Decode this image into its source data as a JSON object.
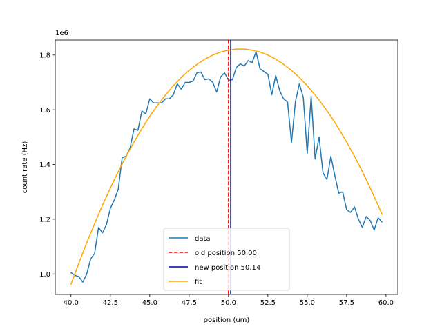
{
  "chart_data": {
    "type": "line",
    "xlabel": "position (um)",
    "ylabel": "count rate (Hz)",
    "y_offset_text": "1e6",
    "xlim": [
      39.0,
      60.75
    ],
    "ylim": [
      0.925,
      1.855
    ],
    "x_ticks": [
      40.0,
      42.5,
      45.0,
      47.5,
      50.0,
      52.5,
      55.0,
      57.5,
      60.0
    ],
    "x_tick_labels": [
      "40.0",
      "42.5",
      "45.0",
      "47.5",
      "50.0",
      "52.5",
      "55.0",
      "57.5",
      "60.0"
    ],
    "y_ticks": [
      1.0,
      1.2,
      1.4,
      1.6,
      1.8
    ],
    "y_tick_labels": [
      "1.0",
      "1.2",
      "1.4",
      "1.6",
      "1.8"
    ],
    "grid": false,
    "legend_position": "lower-center",
    "series": [
      {
        "name": "data",
        "color": "#1f77b4",
        "style": "solid",
        "x": [
          40.0,
          40.25,
          40.5,
          40.75,
          41.0,
          41.25,
          41.5,
          41.75,
          42.0,
          42.25,
          42.5,
          42.75,
          43.0,
          43.25,
          43.5,
          43.75,
          44.0,
          44.25,
          44.5,
          44.75,
          45.0,
          45.25,
          45.5,
          45.75,
          46.0,
          46.25,
          46.5,
          46.75,
          47.0,
          47.25,
          47.5,
          47.75,
          48.0,
          48.25,
          48.5,
          48.75,
          49.0,
          49.25,
          49.5,
          49.75,
          50.0,
          50.25,
          50.5,
          50.75,
          51.0,
          51.25,
          51.5,
          51.75,
          52.0,
          52.25,
          52.5,
          52.75,
          53.0,
          53.25,
          53.5,
          53.75,
          54.0,
          54.25,
          54.5,
          54.75,
          55.0,
          55.25,
          55.5,
          55.75,
          56.0,
          56.25,
          56.5,
          56.75,
          57.0,
          57.25,
          57.5,
          57.75,
          58.0,
          58.25,
          58.5,
          58.75,
          59.0,
          59.25,
          59.5,
          59.75
        ],
        "values": [
          1.005,
          0.995,
          0.99,
          0.97,
          1.0,
          1.055,
          1.075,
          1.17,
          1.15,
          1.18,
          1.24,
          1.27,
          1.31,
          1.425,
          1.43,
          1.46,
          1.53,
          1.525,
          1.595,
          1.585,
          1.64,
          1.625,
          1.625,
          1.625,
          1.64,
          1.64,
          1.655,
          1.695,
          1.675,
          1.7,
          1.7,
          1.705,
          1.735,
          1.738,
          1.71,
          1.713,
          1.7,
          1.665,
          1.72,
          1.735,
          1.708,
          1.71,
          1.755,
          1.768,
          1.76,
          1.78,
          1.772,
          1.812,
          1.75,
          1.74,
          1.73,
          1.655,
          1.725,
          1.67,
          1.64,
          1.628,
          1.48,
          1.63,
          1.695,
          1.645,
          1.44,
          1.65,
          1.42,
          1.5,
          1.37,
          1.345,
          1.43,
          1.36,
          1.295,
          1.3,
          1.235,
          1.225,
          1.245,
          1.2,
          1.17,
          1.21,
          1.195,
          1.16,
          1.205,
          1.19
        ]
      },
      {
        "name": "fit",
        "color": "#ffa500",
        "style": "solid",
        "x": [
          40.0,
          40.5,
          41.0,
          41.5,
          42.0,
          42.5,
          43.0,
          43.5,
          44.0,
          44.5,
          45.0,
          45.5,
          46.0,
          46.5,
          47.0,
          47.5,
          48.0,
          48.5,
          49.0,
          49.5,
          50.0,
          50.5,
          51.0,
          51.5,
          52.0,
          52.5,
          53.0,
          53.5,
          54.0,
          54.5,
          55.0,
          55.5,
          56.0,
          56.5,
          57.0,
          57.5,
          58.0,
          58.5,
          59.0,
          59.5,
          59.75
        ],
        "values": [
          0.962,
          1.04,
          1.114,
          1.184,
          1.251,
          1.314,
          1.374,
          1.43,
          1.482,
          1.531,
          1.576,
          1.617,
          1.654,
          1.688,
          1.718,
          1.744,
          1.766,
          1.785,
          1.8,
          1.811,
          1.818,
          1.822,
          1.822,
          1.818,
          1.811,
          1.8,
          1.785,
          1.766,
          1.744,
          1.718,
          1.688,
          1.654,
          1.617,
          1.576,
          1.531,
          1.482,
          1.43,
          1.374,
          1.314,
          1.251,
          1.218
        ]
      }
    ],
    "vlines": [
      {
        "name": "old position 50.00",
        "x": 50.0,
        "color": "#ff0000",
        "style": "dashed"
      },
      {
        "name": "new position 50.14",
        "x": 50.14,
        "color": "#0000aa",
        "style": "solid"
      }
    ],
    "legend": [
      {
        "label": "data",
        "color": "#1f77b4",
        "style": "solid"
      },
      {
        "label": "old position 50.00",
        "color": "#ff0000",
        "style": "dashed"
      },
      {
        "label": "new position 50.14",
        "color": "#0000aa",
        "style": "solid"
      },
      {
        "label": "fit",
        "color": "#ffa500",
        "style": "solid"
      }
    ]
  }
}
